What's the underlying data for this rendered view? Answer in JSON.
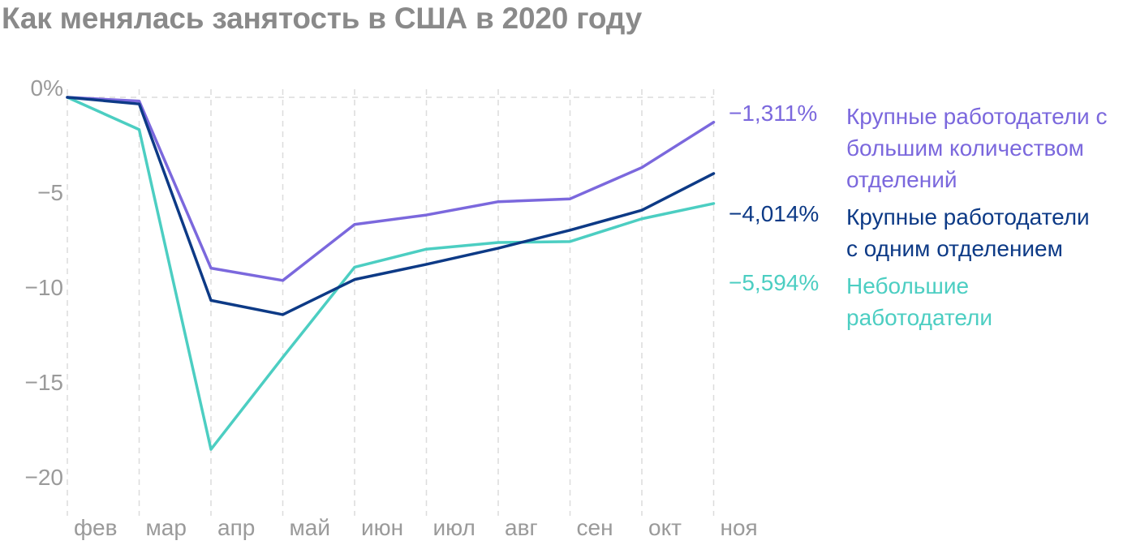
{
  "chart_data": {
    "type": "line",
    "title": "Как менялась занятость в США в 2020 году",
    "xlabel": "",
    "ylabel": "",
    "categories": [
      "фев",
      "мар",
      "апр",
      "май",
      "июн",
      "июл",
      "авг",
      "сен",
      "окт",
      "ноя"
    ],
    "y_ticks": [
      {
        "value": 0,
        "label": "0%"
      },
      {
        "value": -5,
        "label": "−5"
      },
      {
        "value": -10,
        "label": "−10"
      },
      {
        "value": -15,
        "label": "−15"
      },
      {
        "value": -20,
        "label": "−20"
      }
    ],
    "ylim": [
      -21.5,
      0.5
    ],
    "grid": "vertical dashed",
    "legend_placement": "right",
    "series": [
      {
        "name": "Крупные работодатели с большим количеством отделений",
        "end_label": "−1,311%",
        "color": "#7b68dd",
        "values": [
          0,
          -0.2,
          -9.0,
          -9.65,
          -6.7,
          -6.2,
          -5.5,
          -5.35,
          -3.7,
          -1.311
        ]
      },
      {
        "name": "Крупные работодатели с одним отделением",
        "end_label": "−4,014%",
        "color": "#0d3a86",
        "values": [
          0,
          -0.35,
          -10.7,
          -11.45,
          -9.6,
          -8.8,
          -7.95,
          -7.0,
          -5.95,
          -4.014
        ]
      },
      {
        "name": "Небольшие работодатели",
        "end_label": "−5,594%",
        "color": "#4ccec2",
        "values": [
          0,
          -1.7,
          -18.55,
          -13.7,
          -8.95,
          -8.0,
          -7.65,
          -7.6,
          -6.4,
          -5.594
        ]
      }
    ]
  }
}
